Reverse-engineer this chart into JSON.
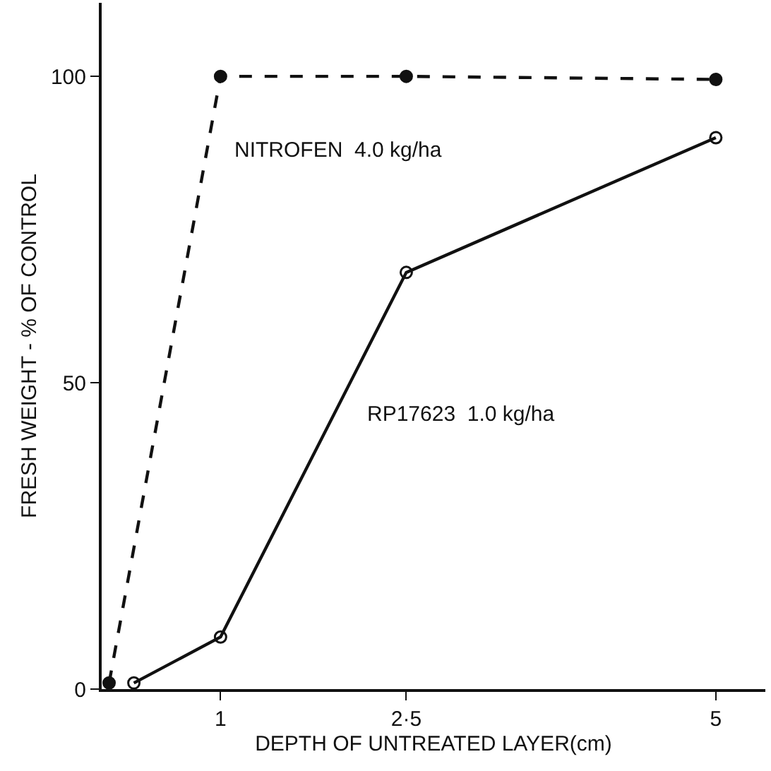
{
  "chart_data": {
    "type": "line",
    "xlabel": "DEPTH OF UNTREATED LAYER(cm)",
    "ylabel": "FRESH WEIGHT - % OF CONTROL",
    "xlim": [
      0.04,
      5.4
    ],
    "xticks": [
      1,
      {
        "value": 2.5,
        "label": "2·5"
      },
      5
    ],
    "ylim": [
      0,
      112
    ],
    "yticks": [
      0,
      50,
      100
    ],
    "grid": false,
    "legend": false,
    "series": [
      {
        "name": "NITROFEN  4.0 kg/ha",
        "color": "#111111",
        "x": [
          0.1,
          1,
          2.5,
          5
        ],
        "values": [
          1,
          100,
          100,
          99.5
        ],
        "line_style": "dashed",
        "marker": "circle"
      },
      {
        "name": "RP17623  1.0 kg/ha",
        "color": "#111111",
        "x": [
          0.3,
          1,
          2.5,
          5
        ],
        "values": [
          1,
          8.5,
          68,
          90
        ],
        "line_style": "solid",
        "marker": "circle"
      }
    ]
  }
}
